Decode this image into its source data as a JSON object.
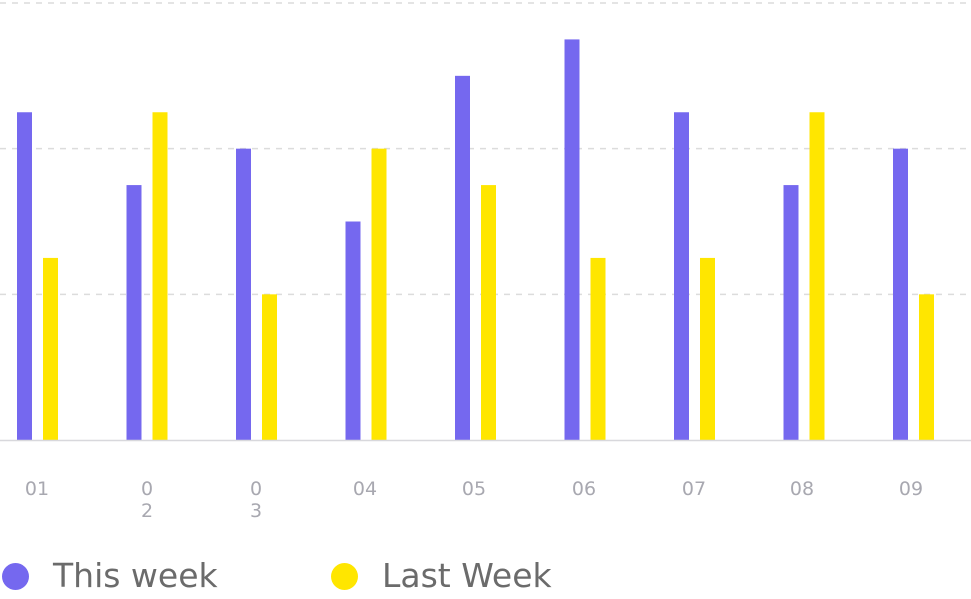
{
  "chart_data": {
    "type": "bar",
    "categories": [
      "01",
      "02",
      "03",
      "04",
      "05",
      "06",
      "07",
      "08",
      "09"
    ],
    "category_display": [
      [
        "01"
      ],
      [
        "0",
        "2"
      ],
      [
        "0",
        "3"
      ],
      [
        "04"
      ],
      [
        "05"
      ],
      [
        "06"
      ],
      [
        "07"
      ],
      [
        "08"
      ],
      [
        "09"
      ]
    ],
    "series": [
      {
        "name": "This week",
        "color": "#7568ef",
        "values": [
          90,
          70,
          80,
          60,
          100,
          110,
          90,
          70,
          80
        ]
      },
      {
        "name": "Last Week",
        "color": "#ffe600",
        "values": [
          50,
          90,
          40,
          80,
          70,
          50,
          50,
          90,
          40
        ]
      }
    ],
    "title": "",
    "xlabel": "",
    "ylabel": "",
    "ylim": [
      0,
      120
    ],
    "grid": true,
    "legend_position": "bottom-left"
  },
  "legend": {
    "items": [
      {
        "label": "This week",
        "color": "#7568ef",
        "icon": "circle-icon"
      },
      {
        "label": "Last Week",
        "color": "#ffe600",
        "icon": "circle-icon"
      }
    ]
  }
}
